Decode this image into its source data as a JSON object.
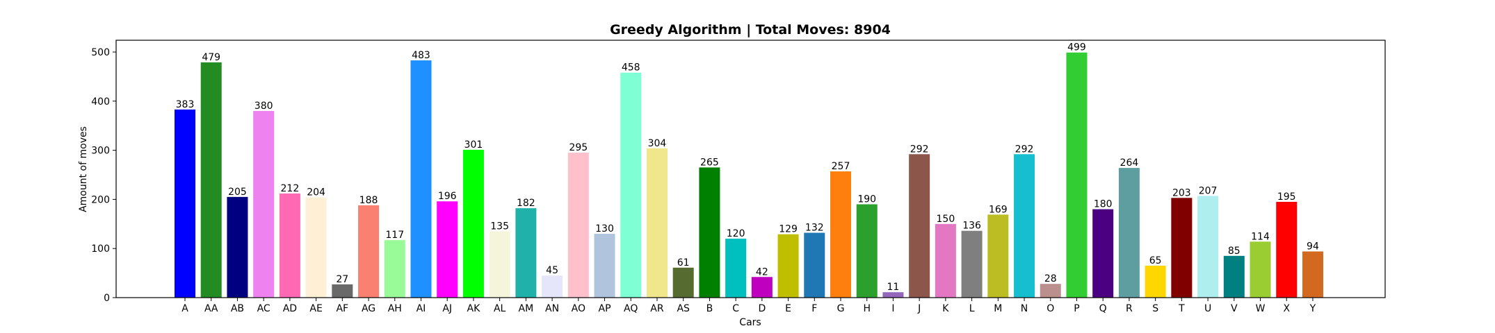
{
  "chart_data": {
    "type": "bar",
    "title": "Greedy Algorithm | Total Moves: 8904",
    "xlabel": "Cars",
    "ylabel": "Amount of moves",
    "ylim": [
      0,
      524
    ],
    "yticks": [
      0,
      100,
      200,
      300,
      400,
      500
    ],
    "grid": false,
    "legend": "none",
    "categories": [
      "A",
      "AA",
      "AB",
      "AC",
      "AD",
      "AE",
      "AF",
      "AG",
      "AH",
      "AI",
      "AJ",
      "AK",
      "AL",
      "AM",
      "AN",
      "AO",
      "AP",
      "AQ",
      "AR",
      "AS",
      "B",
      "C",
      "D",
      "E",
      "F",
      "G",
      "H",
      "I",
      "J",
      "K",
      "L",
      "M",
      "N",
      "O",
      "P",
      "Q",
      "R",
      "S",
      "T",
      "U",
      "V",
      "W",
      "X",
      "Y"
    ],
    "values": [
      383,
      479,
      205,
      380,
      212,
      204,
      27,
      188,
      117,
      483,
      196,
      301,
      135,
      182,
      45,
      295,
      130,
      458,
      304,
      61,
      265,
      120,
      42,
      129,
      132,
      257,
      190,
      11,
      292,
      150,
      136,
      169,
      292,
      28,
      499,
      180,
      264,
      65,
      203,
      207,
      85,
      114,
      195,
      94
    ],
    "colors": [
      "#0000ff",
      "#228b22",
      "#000080",
      "#ee82ee",
      "#ff69b4",
      "#ffefd5",
      "#696969",
      "#fa8072",
      "#98fb98",
      "#1e90ff",
      "#ff00ff",
      "#00ff00",
      "#f5f5dc",
      "#20b2aa",
      "#e6e6fa",
      "#ffc0cb",
      "#b0c4de",
      "#7fffd4",
      "#f0e68c",
      "#556b2f",
      "#008000",
      "#00bfbf",
      "#bf00bf",
      "#bfbf00",
      "#1f77b4",
      "#ff7f0e",
      "#2ca02c",
      "#9467bd",
      "#8c564b",
      "#e377c2",
      "#7f7f7f",
      "#bcbd22",
      "#17becf",
      "#bc8f8f",
      "#32cd32",
      "#4b0082",
      "#5f9ea0",
      "#ffd700",
      "#800000",
      "#afeeee",
      "#008080",
      "#9acd32",
      "#ff0000",
      "#d2691e"
    ]
  }
}
